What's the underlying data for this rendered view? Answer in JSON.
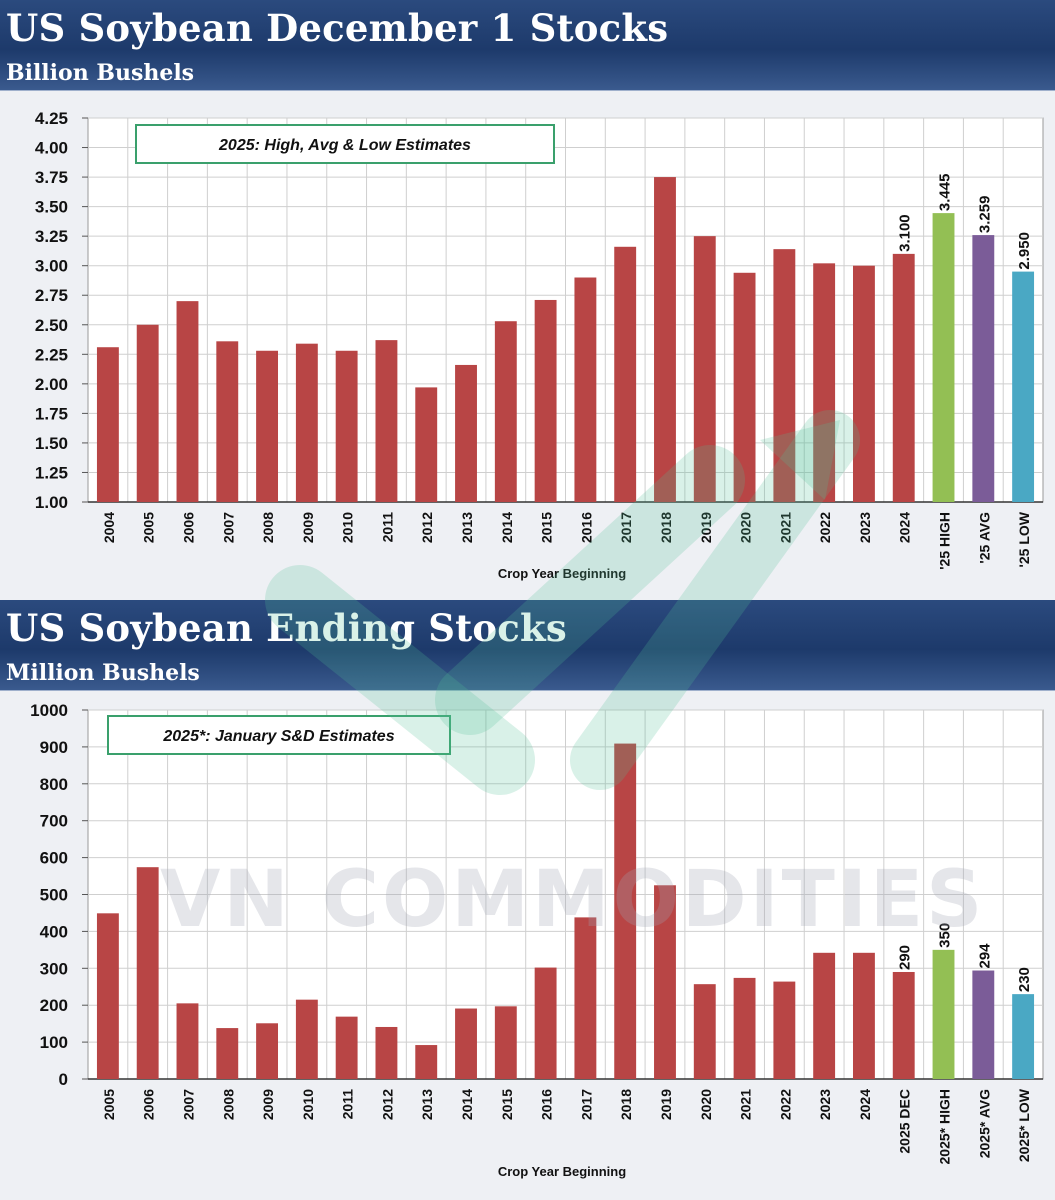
{
  "chart_data": [
    {
      "type": "bar",
      "title": "US Soybean December 1 Stocks",
      "subtitle": "Billion Bushels",
      "xlabel": "Crop Year Beginning",
      "ylabel": "",
      "ylim": [
        1.0,
        4.25
      ],
      "yticks": [
        "1.00",
        "1.25",
        "1.50",
        "1.75",
        "2.00",
        "2.25",
        "2.50",
        "2.75",
        "3.00",
        "3.25",
        "3.50",
        "3.75",
        "4.00",
        "4.25"
      ],
      "grid": true,
      "annotation": "2025: High, Avg & Low Estimates",
      "categories": [
        "2004",
        "2005",
        "2006",
        "2007",
        "2008",
        "2009",
        "2010",
        "2011",
        "2012",
        "2013",
        "2014",
        "2015",
        "2016",
        "2017",
        "2018",
        "2019",
        "2020",
        "2021",
        "2022",
        "2023",
        "2024",
        "'25 HIGH",
        "'25 AVG",
        "'25 LOW"
      ],
      "values": [
        2.31,
        2.5,
        2.7,
        2.36,
        2.28,
        2.34,
        2.28,
        2.37,
        1.97,
        2.16,
        2.53,
        2.71,
        2.9,
        3.16,
        3.75,
        3.25,
        2.94,
        3.14,
        3.02,
        3.0,
        3.1,
        3.445,
        3.259,
        2.95
      ],
      "colors": [
        "#b84545",
        "#b84545",
        "#b84545",
        "#b84545",
        "#b84545",
        "#b84545",
        "#b84545",
        "#b84545",
        "#b84545",
        "#b84545",
        "#b84545",
        "#b84545",
        "#b84545",
        "#b84545",
        "#b84545",
        "#b84545",
        "#b84545",
        "#b84545",
        "#b84545",
        "#b84545",
        "#b84545",
        "#93bf54",
        "#7b5c98",
        "#4aa8c4"
      ],
      "data_labels": {
        "20": "3.100",
        "21": "3.445",
        "22": "3.259",
        "23": "2.950"
      }
    },
    {
      "type": "bar",
      "title": "US Soybean Ending Stocks",
      "subtitle": "Million Bushels",
      "xlabel": "Crop Year Beginning",
      "ylabel": "",
      "ylim": [
        0,
        1000
      ],
      "yticks": [
        "0",
        "100",
        "200",
        "300",
        "400",
        "500",
        "600",
        "700",
        "800",
        "900",
        "1000"
      ],
      "grid": true,
      "annotation": "2025*: January S&D Estimates",
      "categories": [
        "2005",
        "2006",
        "2007",
        "2008",
        "2009",
        "2010",
        "2011",
        "2012",
        "2013",
        "2014",
        "2015",
        "2016",
        "2017",
        "2018",
        "2019",
        "2020",
        "2021",
        "2022",
        "2023",
        "2024",
        "2025 DEC",
        "2025* HIGH",
        "2025* AVG",
        "2025* LOW"
      ],
      "values": [
        449,
        574,
        205,
        138,
        151,
        215,
        169,
        141,
        92,
        191,
        197,
        302,
        438,
        909,
        525,
        257,
        274,
        264,
        342,
        342,
        290,
        350,
        294,
        230
      ],
      "colors": [
        "#b84545",
        "#b84545",
        "#b84545",
        "#b84545",
        "#b84545",
        "#b84545",
        "#b84545",
        "#b84545",
        "#b84545",
        "#b84545",
        "#b84545",
        "#b84545",
        "#b84545",
        "#b84545",
        "#b84545",
        "#b84545",
        "#b84545",
        "#b84545",
        "#b84545",
        "#b84545",
        "#b84545",
        "#93bf54",
        "#7b5c98",
        "#4aa8c4"
      ],
      "data_labels": {
        "20": "290",
        "21": "350",
        "22": "294",
        "23": "230"
      }
    }
  ],
  "watermark": "VN COMMODITIES"
}
